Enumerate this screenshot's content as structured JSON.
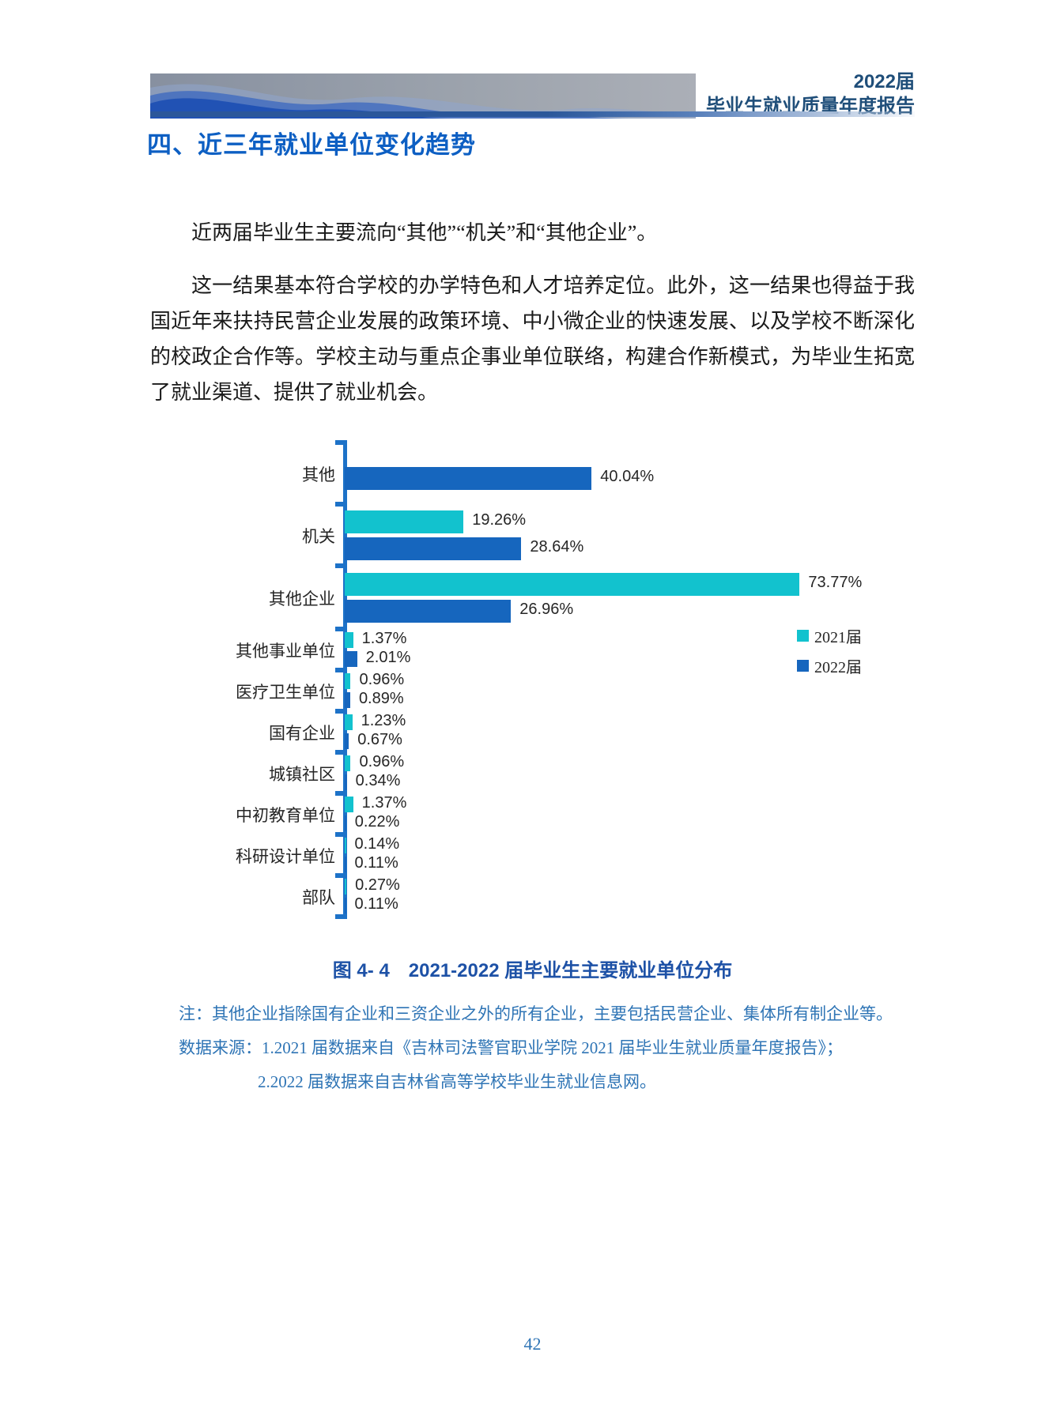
{
  "header": {
    "year_line": "2022届",
    "report_line": "毕业生就业质量年度报告"
  },
  "section": {
    "title": "四、近三年就业单位变化趋势"
  },
  "paragraphs": [
    "近两届毕业生主要流向“其他”“机关”和“其他企业”。",
    "这一结果基本符合学校的办学特色和人才培养定位。此外，这一结果也得益于我国近年来扶持民营企业发展的政策环境、中小微企业的快速发展、以及学校不断深化的校政企合作等。学校主动与重点企事业单位联络，构建合作新模式，为毕业生拓宽了就业渠道、提供了就业机会。"
  ],
  "chart_data": {
    "type": "bar",
    "orientation": "horizontal",
    "title": "",
    "xlabel": "",
    "ylabel": "",
    "xlim": [
      0,
      80
    ],
    "grid": false,
    "legend_position": "right-middle",
    "value_suffix": "%",
    "axis_color": "#1D72C8",
    "categories": [
      "其他",
      "机关",
      "其他企业",
      "其他事业单位",
      "医疗卫生单位",
      "国有企业",
      "城镇社区",
      "中初教育单位",
      "科研设计单位",
      "部队"
    ],
    "series": [
      {
        "name": "2021届",
        "color": "#12C2CE",
        "values": [
          null,
          19.26,
          73.77,
          1.37,
          0.96,
          1.23,
          0.96,
          1.37,
          0.14,
          0.27
        ]
      },
      {
        "name": "2022届",
        "color": "#1666BE",
        "values": [
          40.04,
          28.64,
          26.96,
          2.01,
          0.89,
          0.67,
          0.34,
          0.22,
          0.11,
          0.11
        ]
      }
    ]
  },
  "figure": {
    "caption": "图 4- 4　2021-2022 届毕业生主要就业单位分布"
  },
  "notes": [
    "注：其他企业指除国有企业和三资企业之外的所有企业，主要包括民营企业、集体所有制企业等。",
    "数据来源：1.2021 届数据来自《吉林司法警官职业学院 2021 届毕业生就业质量年度报告》；",
    "2.2022 届数据来自吉林省高等学校毕业生就业信息网。"
  ],
  "page_number": "42",
  "colors": {
    "header_text": "#1F4E79",
    "section_title": "#0D5FC3",
    "caption": "#1D51A6",
    "notes": "#2E74B5",
    "body_text": "#1A1A1A"
  }
}
